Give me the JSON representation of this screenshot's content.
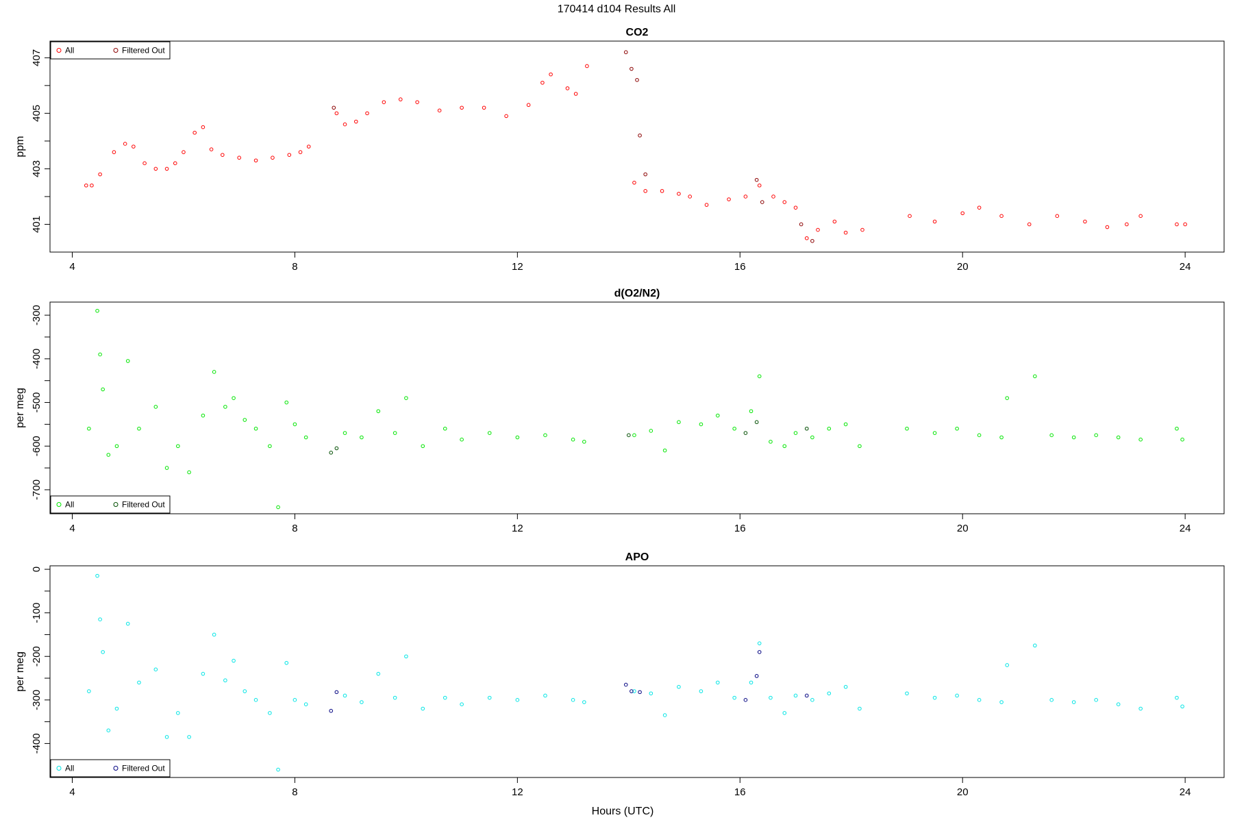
{
  "page_title": "170414   d104   Results All",
  "x_axis": {
    "label": "Hours (UTC)",
    "ticks": [
      "4",
      "8",
      "12",
      "16",
      "20",
      "24"
    ]
  },
  "colors": {
    "co2": "#ff0000",
    "co2_filtered": "#8b0000",
    "o2": "#00e600",
    "o2_filtered": "#004d00",
    "apo": "#00e5e5",
    "apo_filtered": "#000080"
  },
  "chart_data": [
    {
      "type": "scatter",
      "title": "CO2",
      "ylabel": "ppm",
      "xlim": [
        3.6,
        24.7
      ],
      "ylim": [
        400.0,
        407.6
      ],
      "x_ticks": [
        4,
        8,
        12,
        16,
        20,
        24
      ],
      "y_ticks": [
        401,
        403,
        405,
        407
      ],
      "legend": {
        "position": "top-left",
        "entries": [
          "All",
          "Filtered Out"
        ]
      },
      "series": [
        {
          "name": "All",
          "x": [
            4.25,
            4.35,
            4.5,
            4.75,
            4.95,
            5.1,
            5.3,
            5.5,
            5.7,
            5.85,
            6.0,
            6.2,
            6.35,
            6.5,
            6.7,
            7.0,
            7.3,
            7.6,
            7.9,
            8.1,
            8.25,
            8.75,
            8.9,
            9.1,
            9.3,
            9.6,
            9.9,
            10.2,
            10.6,
            11.0,
            11.4,
            11.8,
            12.2,
            12.45,
            12.6,
            12.9,
            13.05,
            13.25,
            14.1,
            14.3,
            14.6,
            14.9,
            15.1,
            15.4,
            15.8,
            16.1,
            16.35,
            16.6,
            16.8,
            17.0,
            17.2,
            17.4,
            17.7,
            17.9,
            18.2,
            19.05,
            19.5,
            20.0,
            20.3,
            20.7,
            21.2,
            21.7,
            22.2,
            22.6,
            22.95,
            23.2,
            23.85,
            24.0
          ],
          "y": [
            402.4,
            402.4,
            402.8,
            403.6,
            403.9,
            403.8,
            403.2,
            403.0,
            403.0,
            403.2,
            403.6,
            404.3,
            404.5,
            403.7,
            403.5,
            403.4,
            403.3,
            403.4,
            403.5,
            403.6,
            403.8,
            405.0,
            404.6,
            404.7,
            405.0,
            405.4,
            405.5,
            405.4,
            405.1,
            405.2,
            405.2,
            404.9,
            405.3,
            406.1,
            406.4,
            405.9,
            405.7,
            406.7,
            402.5,
            402.2,
            402.2,
            402.1,
            402.0,
            401.7,
            401.9,
            402.0,
            402.4,
            402.0,
            401.8,
            401.6,
            400.5,
            400.8,
            401.1,
            400.7,
            400.8,
            401.3,
            401.1,
            401.4,
            401.6,
            401.3,
            401.0,
            401.3,
            401.1,
            400.9,
            401.0,
            401.3,
            401.0,
            401.0
          ]
        },
        {
          "name": "Filtered Out",
          "x": [
            8.7,
            13.95,
            14.05,
            14.15,
            14.2,
            14.3,
            16.3,
            16.4,
            17.1,
            17.3
          ],
          "y": [
            405.2,
            407.2,
            406.6,
            406.2,
            404.2,
            402.8,
            402.6,
            401.8,
            401.0,
            400.4
          ]
        }
      ]
    },
    {
      "type": "scatter",
      "title": "d(O2/N2)",
      "ylabel": "per meg",
      "xlim": [
        3.6,
        24.7
      ],
      "ylim": [
        -755,
        -270
      ],
      "x_ticks": [
        4,
        8,
        12,
        16,
        20,
        24
      ],
      "y_ticks": [
        -300,
        -400,
        -500,
        -600,
        -700
      ],
      "legend": {
        "position": "bottom-left",
        "entries": [
          "All",
          "Filtered Out"
        ]
      },
      "series": [
        {
          "name": "All",
          "x": [
            4.3,
            4.45,
            4.5,
            4.55,
            4.65,
            4.8,
            5.0,
            5.2,
            5.5,
            5.7,
            5.9,
            6.1,
            6.35,
            6.55,
            6.75,
            6.9,
            7.1,
            7.3,
            7.55,
            7.7,
            7.85,
            8.0,
            8.2,
            8.9,
            9.2,
            9.5,
            9.8,
            10.0,
            10.3,
            10.7,
            11.0,
            11.5,
            12.0,
            12.5,
            13.0,
            13.2,
            14.1,
            14.4,
            14.65,
            14.9,
            15.3,
            15.6,
            15.9,
            16.2,
            16.35,
            16.55,
            16.8,
            17.0,
            17.3,
            17.6,
            17.9,
            18.15,
            19.0,
            19.5,
            19.9,
            20.3,
            20.7,
            20.8,
            21.3,
            21.6,
            22.0,
            22.4,
            22.8,
            23.2,
            23.85,
            23.95
          ],
          "y": [
            -560,
            -290,
            -390,
            -470,
            -620,
            -600,
            -405,
            -560,
            -510,
            -650,
            -600,
            -660,
            -530,
            -430,
            -510,
            -490,
            -540,
            -560,
            -600,
            -740,
            -500,
            -550,
            -580,
            -570,
            -580,
            -520,
            -570,
            -490,
            -600,
            -560,
            -585,
            -570,
            -580,
            -575,
            -585,
            -590,
            -575,
            -565,
            -610,
            -545,
            -550,
            -530,
            -560,
            -520,
            -440,
            -590,
            -600,
            -570,
            -580,
            -560,
            -550,
            -600,
            -560,
            -570,
            -560,
            -575,
            -580,
            -490,
            -440,
            -575,
            -580,
            -575,
            -580,
            -585,
            -560,
            -585
          ]
        },
        {
          "name": "Filtered Out",
          "x": [
            8.65,
            8.75,
            14.0,
            16.1,
            16.3,
            17.2
          ],
          "y": [
            -615,
            -605,
            -575,
            -570,
            -545,
            -560
          ]
        }
      ]
    },
    {
      "type": "scatter",
      "title": "APO",
      "ylabel": "per meg",
      "xlim": [
        3.6,
        24.7
      ],
      "ylim": [
        -478,
        8
      ],
      "x_ticks": [
        4,
        8,
        12,
        16,
        20,
        24
      ],
      "y_ticks": [
        0,
        -100,
        -200,
        -300,
        -400
      ],
      "legend": {
        "position": "bottom-left",
        "entries": [
          "All",
          "Filtered Out"
        ]
      },
      "series": [
        {
          "name": "All",
          "x": [
            4.3,
            4.45,
            4.5,
            4.55,
            4.65,
            4.8,
            5.0,
            5.2,
            5.5,
            5.7,
            5.9,
            6.1,
            6.35,
            6.55,
            6.75,
            6.9,
            7.1,
            7.3,
            7.55,
            7.7,
            7.85,
            8.0,
            8.2,
            8.9,
            9.2,
            9.5,
            9.8,
            10.0,
            10.3,
            10.7,
            11.0,
            11.5,
            12.0,
            12.5,
            13.0,
            13.2,
            14.1,
            14.4,
            14.65,
            14.9,
            15.3,
            15.6,
            15.9,
            16.2,
            16.35,
            16.55,
            16.8,
            17.0,
            17.3,
            17.6,
            17.9,
            18.15,
            19.0,
            19.5,
            19.9,
            20.3,
            20.7,
            20.8,
            21.3,
            21.6,
            22.0,
            22.4,
            22.8,
            23.2,
            23.85,
            23.95
          ],
          "y": [
            -280,
            -15,
            -115,
            -190,
            -370,
            -320,
            -125,
            -260,
            -230,
            -385,
            -330,
            -385,
            -240,
            -150,
            -255,
            -210,
            -280,
            -300,
            -330,
            -460,
            -215,
            -300,
            -310,
            -290,
            -305,
            -240,
            -295,
            -200,
            -320,
            -295,
            -310,
            -295,
            -300,
            -290,
            -300,
            -305,
            -280,
            -285,
            -335,
            -270,
            -280,
            -260,
            -295,
            -260,
            -170,
            -295,
            -330,
            -290,
            -300,
            -285,
            -270,
            -320,
            -285,
            -295,
            -290,
            -300,
            -305,
            -220,
            -175,
            -300,
            -305,
            -300,
            -310,
            -320,
            -295,
            -315
          ]
        },
        {
          "name": "Filtered Out",
          "x": [
            8.65,
            8.75,
            13.95,
            14.05,
            14.2,
            16.1,
            16.3,
            16.35,
            17.2
          ],
          "y": [
            -325,
            -282,
            -265,
            -280,
            -282,
            -300,
            -245,
            -190,
            -290
          ]
        }
      ]
    }
  ]
}
